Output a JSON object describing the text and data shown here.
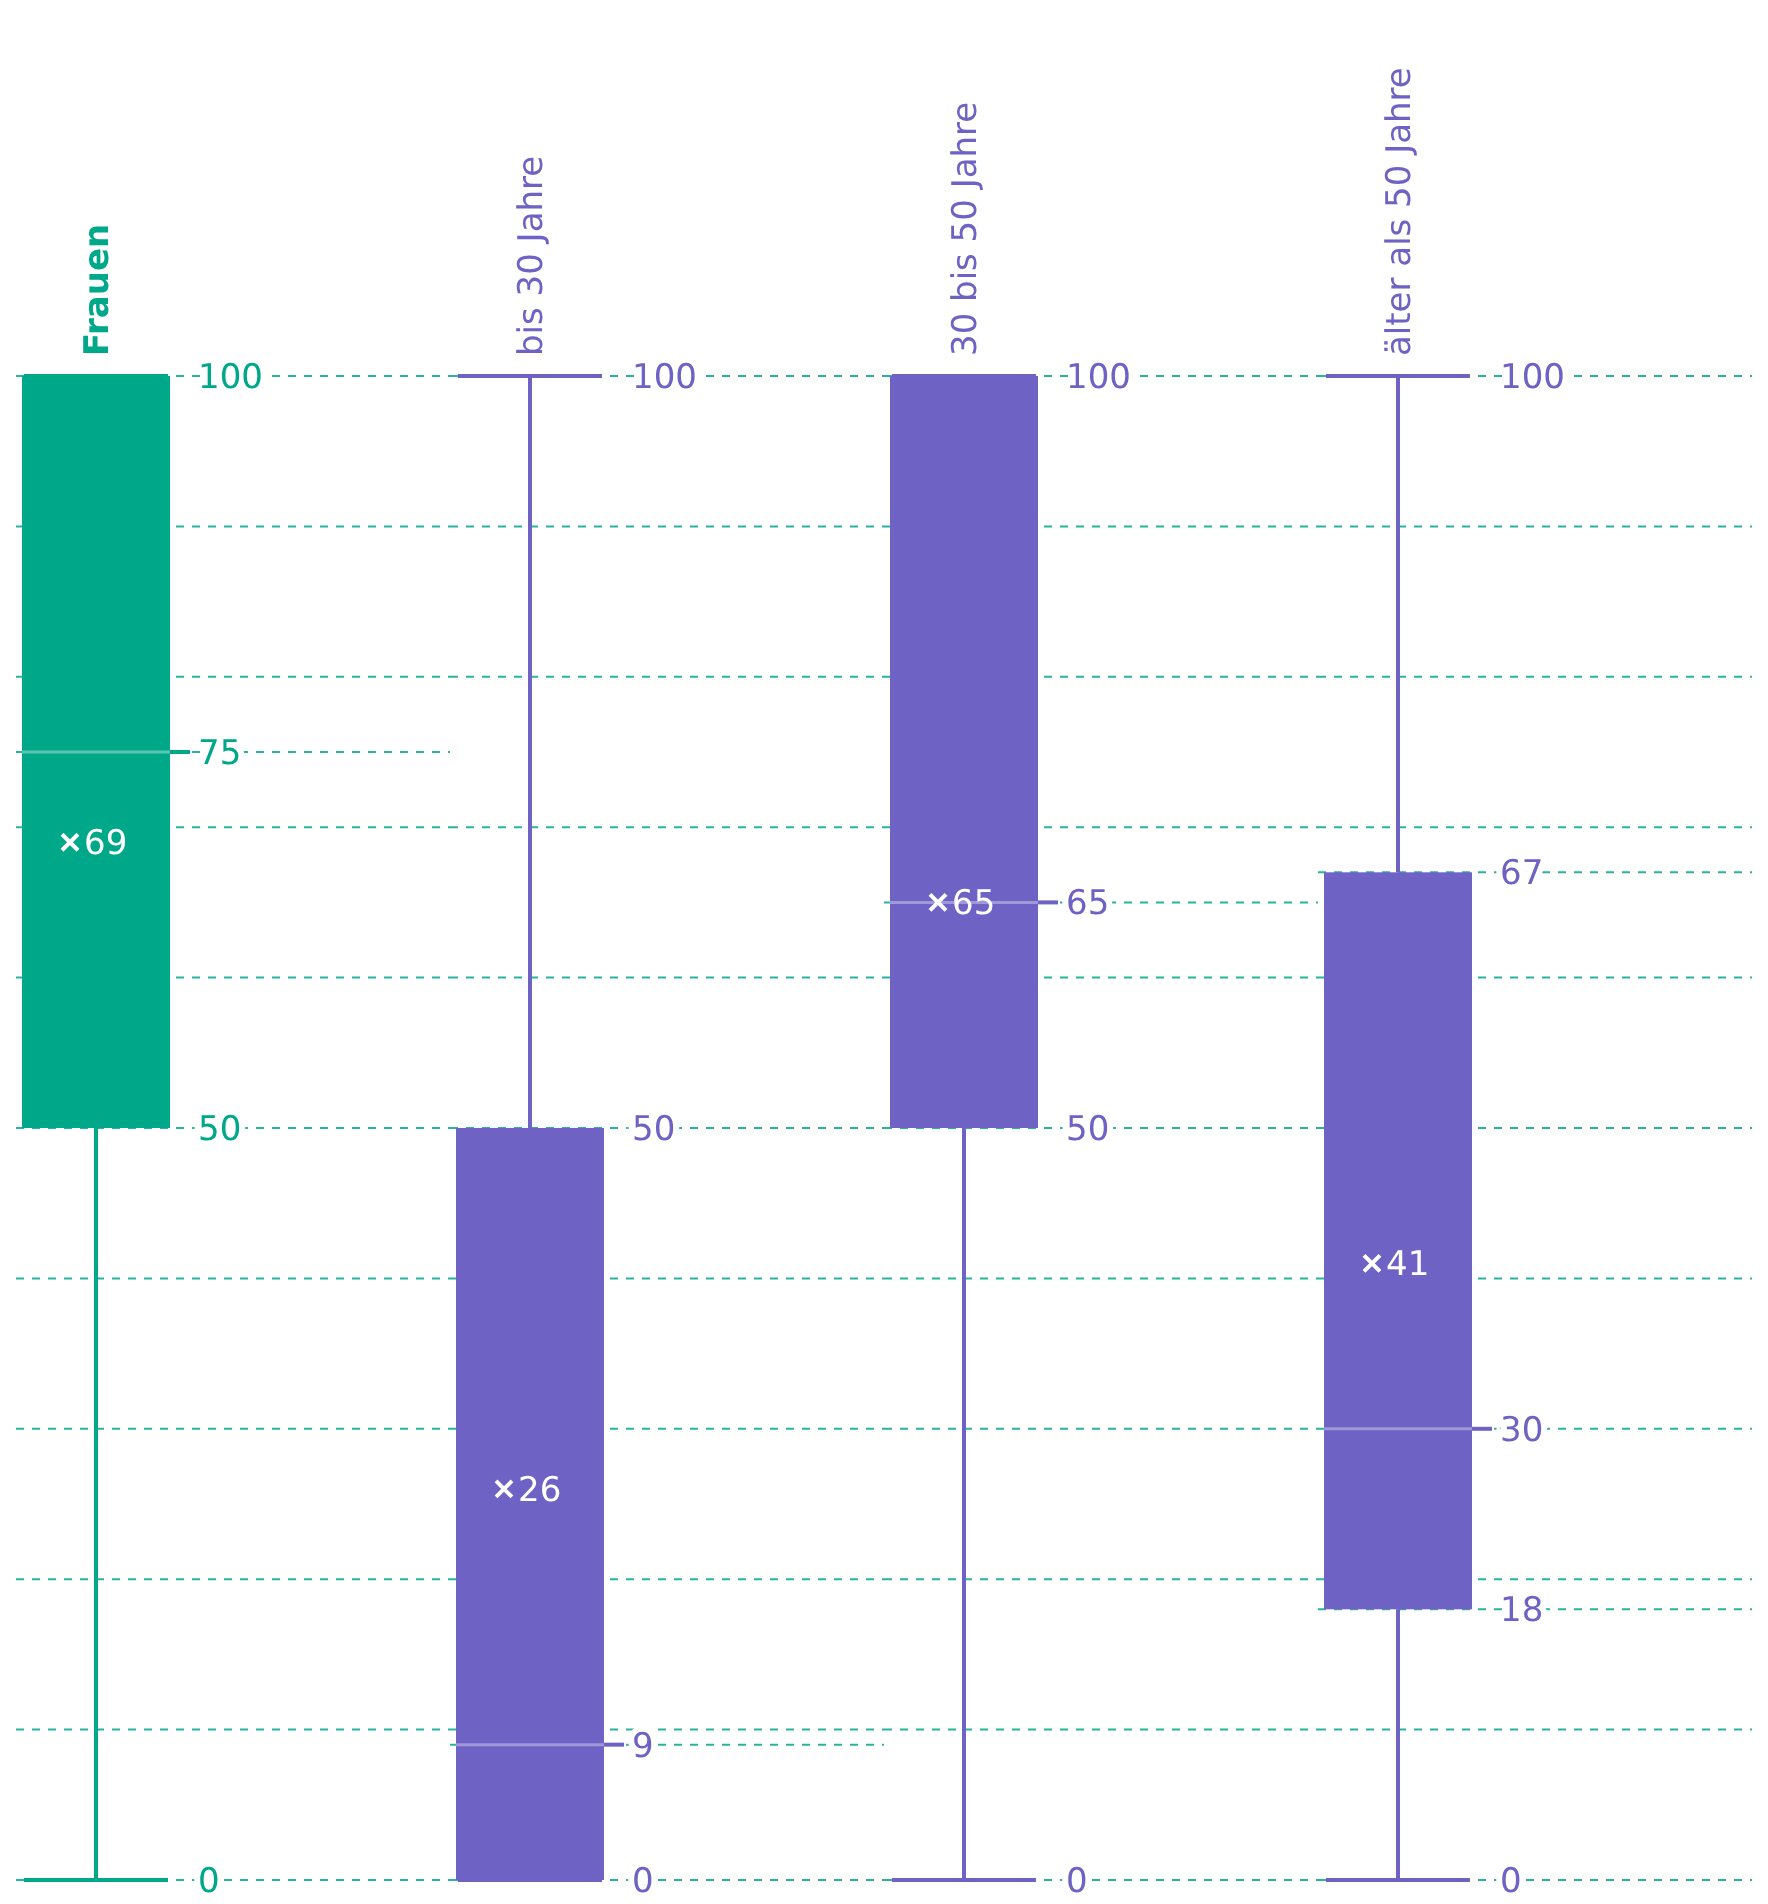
{
  "chart_data": [
    {
      "type": "box",
      "categories": [
        "Frauen"
      ],
      "boxes": [
        {
          "low": 0,
          "q1": 50,
          "median": 75,
          "q3": 100,
          "high": 100,
          "mean": 69
        }
      ],
      "annotations": [
        "69"
      ],
      "colors": [
        "#00a88a"
      ],
      "ylim": [
        0,
        100
      ],
      "yticks": [
        0,
        {
          "value": 10,
          "label": null
        },
        {
          "value": 20,
          "label": null
        },
        {
          "value": 30,
          "label": null
        },
        {
          "value": 40,
          "label": null
        },
        50,
        {
          "value": 60,
          "label": null
        },
        {
          "value": 70,
          "label": null
        },
        75,
        {
          "value": 80,
          "label": null
        },
        {
          "value": 90,
          "label": null
        },
        100
      ],
      "grid": "y"
    },
    {
      "type": "box",
      "categories": [
        "bis 30 Jahre"
      ],
      "boxes": [
        {
          "low": 0,
          "q1": 0,
          "median": 9,
          "q3": 50,
          "high": 100,
          "mean": 26
        }
      ],
      "annotations": [
        "26"
      ],
      "colors": [
        "#6e62c4"
      ],
      "ylim": [
        0,
        100
      ],
      "yticks": [
        0,
        9,
        {
          "value": 10,
          "label": null
        },
        {
          "value": 20,
          "label": null
        },
        {
          "value": 30,
          "label": null
        },
        {
          "value": 40,
          "label": null
        },
        50,
        {
          "value": 60,
          "label": null
        },
        {
          "value": 70,
          "label": null
        },
        {
          "value": 80,
          "label": null
        },
        {
          "value": 90,
          "label": null
        },
        100
      ],
      "grid": "y"
    },
    {
      "type": "box",
      "categories": [
        "30 bis 50 Jahre"
      ],
      "boxes": [
        {
          "low": 0,
          "q1": 50,
          "median": 65,
          "q3": 100,
          "high": 100,
          "mean": 65
        }
      ],
      "annotations": [
        "65"
      ],
      "colors": [
        "#6e62c4"
      ],
      "ylim": [
        0,
        100
      ],
      "yticks": [
        0,
        {
          "value": 10,
          "label": null
        },
        {
          "value": 20,
          "label": null
        },
        {
          "value": 30,
          "label": null
        },
        {
          "value": 40,
          "label": null
        },
        50,
        {
          "value": 60,
          "label": null
        },
        65,
        {
          "value": 70,
          "label": null
        },
        {
          "value": 80,
          "label": null
        },
        {
          "value": 90,
          "label": null
        },
        100
      ],
      "grid": "y"
    },
    {
      "type": "box",
      "categories": [
        "älter als 50 Jahre"
      ],
      "boxes": [
        {
          "low": 0,
          "q1": 18,
          "median": 30,
          "q3": 67,
          "high": 100,
          "mean": 41
        }
      ],
      "annotations": [
        "41"
      ],
      "colors": [
        "#6e62c4"
      ],
      "ylim": [
        0,
        100
      ],
      "yticks": [
        0,
        {
          "value": 10,
          "label": null
        },
        18,
        {
          "value": 20,
          "label": null
        },
        30,
        {
          "value": 40,
          "label": null
        },
        {
          "value": 50,
          "label": null
        },
        {
          "value": 60,
          "label": null
        },
        67,
        {
          "value": 70,
          "label": null
        },
        {
          "value": 80,
          "label": null
        },
        {
          "value": 90,
          "label": null
        },
        100
      ],
      "grid": "y"
    }
  ]
}
